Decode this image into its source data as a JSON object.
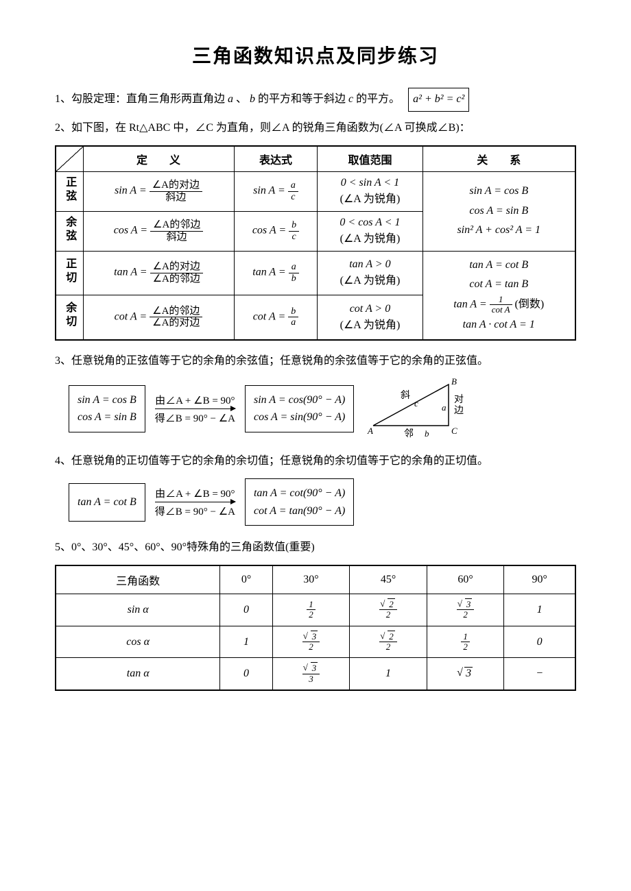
{
  "title": "三角函数知识点及同步练习",
  "p1_prefix": "1、勾股定理：直角三角形两直角边",
  "p1_mid": "的平方和等于斜边",
  "p1_suffix": "的平方。",
  "var_a": "a",
  "var_b": "b",
  "var_c": "c",
  "sep": "、",
  "pythag": "a² + b² = c²",
  "p2": "2、如下图，在 Rt△ABC 中，∠C 为直角，则∠A 的锐角三角函数为(∠A 可换成∠B)：",
  "table1": {
    "headers": [
      "定　　义",
      "表达式",
      "取值范围",
      "关　　系"
    ],
    "rows": [
      {
        "name": "正弦",
        "def_lhs": "sin A =",
        "def_num": "∠A的对边",
        "def_den": "斜边",
        "expr_lhs": "sin A =",
        "expr_num": "a",
        "expr_den": "c",
        "range1": "0 < sin A < 1",
        "range2": "(∠A 为锐角)"
      },
      {
        "name": "余弦",
        "def_lhs": "cos A =",
        "def_num": "∠A的邻边",
        "def_den": "斜边",
        "expr_lhs": "cos A =",
        "expr_num": "b",
        "expr_den": "c",
        "range1": "0 < cos A < 1",
        "range2": "(∠A 为锐角)"
      },
      {
        "name": "正切",
        "def_lhs": "tan A =",
        "def_num": "∠A的对边",
        "def_den": "∠A的邻边",
        "expr_lhs": "tan A =",
        "expr_num": "a",
        "expr_den": "b",
        "range1": "tan A > 0",
        "range2": "(∠A 为锐角)"
      },
      {
        "name": "余切",
        "def_lhs": "cot A =",
        "def_num": "∠A的邻边",
        "def_den": "∠A的对边",
        "expr_lhs": "cot A =",
        "expr_num": "b",
        "expr_den": "a",
        "range1": "cot A > 0",
        "range2": "(∠A 为锐角)"
      }
    ],
    "rel1": {
      "l1": "sin A = cos B",
      "l2": "cos A = sin B",
      "l3": "sin² A + cos² A = 1"
    },
    "rel2": {
      "l1": "tan A = cot B",
      "l2": "cot A = tan B",
      "l3_pre": "tan A =",
      "l3_num": "1",
      "l3_den": "cot A",
      "l3_suf": "(倒数)",
      "l4": "tan A · cot A = 1"
    }
  },
  "p3": "3、任意锐角的正弦值等于它的余角的余弦值；任意锐角的余弦值等于它的余角的正弦值。",
  "flow3": {
    "box1_l1": "sin A = cos B",
    "box1_l2": "cos A = sin B",
    "arrow_top": "由∠A + ∠B = 90°",
    "arrow_bot": "得∠B = 90° − ∠A",
    "box2_l1": "sin A = cos(90° − A)",
    "box2_l2": "cos A = sin(90° − A)"
  },
  "triangle": {
    "label_hyp": "斜",
    "label_c": "c",
    "label_opp": "对边",
    "label_a": "a",
    "label_adj": "邻",
    "label_b": "b",
    "vB": "B",
    "vA": "A",
    "vC": "C"
  },
  "p4": "4、任意锐角的正切值等于它的余角的余切值；任意锐角的余切值等于它的余角的正切值。",
  "flow4": {
    "box1_l1": "tan A = cot B",
    "arrow_top": "由∠A + ∠B = 90°",
    "arrow_bot": "得∠B = 90° − ∠A",
    "box2_l1": "tan A = cot(90° − A)",
    "box2_l2": "cot A = tan(90° − A)"
  },
  "p5": "5、0°、30°、45°、60°、90°特殊角的三角函数值(重要)",
  "table2": {
    "header": [
      "三角函数",
      "0°",
      "30°",
      "45°",
      "60°",
      "90°"
    ],
    "rows": [
      {
        "fn": "sin α",
        "v": [
          "0",
          {
            "num": "1",
            "den": "2"
          },
          {
            "num": "√2",
            "den": "2"
          },
          {
            "num": "√3",
            "den": "2"
          },
          "1"
        ]
      },
      {
        "fn": "cos α",
        "v": [
          "1",
          {
            "num": "√3",
            "den": "2"
          },
          {
            "num": "√2",
            "den": "2"
          },
          {
            "num": "1",
            "den": "2"
          },
          "0"
        ]
      },
      {
        "fn": "tan α",
        "v": [
          "0",
          {
            "num": "√3",
            "den": "3"
          },
          "1",
          "√3",
          "−"
        ]
      }
    ]
  },
  "colors": {
    "text": "#000000",
    "bg": "#ffffff",
    "border": "#000000"
  }
}
